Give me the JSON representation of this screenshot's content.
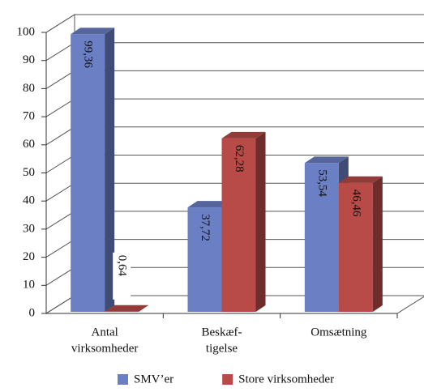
{
  "chart_data": {
    "type": "bar3d",
    "categories": [
      [
        "Antal",
        "virksomheder"
      ],
      [
        "Beskæf-",
        "tigelse"
      ],
      [
        "Omsætning"
      ]
    ],
    "series": [
      {
        "name": "SMV’er",
        "color": "#6b7fc4",
        "values": [
          99.36,
          37.72,
          53.54
        ],
        "value_labels": [
          "99,36",
          "37,72",
          "53,54"
        ]
      },
      {
        "name": "Store virksomheder",
        "color": "#b84a47",
        "values": [
          0.64,
          62.28,
          46.46
        ],
        "value_labels": [
          "0,64",
          "62,28",
          "46,46"
        ]
      }
    ],
    "ylim": [
      0,
      100
    ],
    "yticks": [
      0,
      10,
      20,
      30,
      40,
      50,
      60,
      70,
      80,
      90,
      100
    ],
    "grid": true,
    "legend": "bottom"
  }
}
